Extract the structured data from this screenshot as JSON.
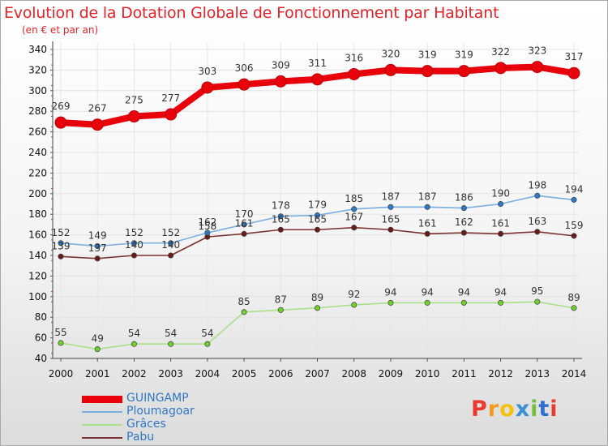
{
  "header": {
    "title": "Evolution de la Dotation Globale de Fonctionnement par Habitant",
    "subtitle": "(en € et par an)"
  },
  "logo": {
    "text": "Proxiti",
    "letters": [
      {
        "ch": "P",
        "color": "#e63b2e"
      },
      {
        "ch": "r",
        "color": "#f39a1f"
      },
      {
        "ch": "o",
        "color": "#f4c20d"
      },
      {
        "ch": "x",
        "color": "#3a8fd6"
      },
      {
        "ch": "i",
        "color": "#6fc13e"
      },
      {
        "ch": "t",
        "color": "#2d6fd1"
      },
      {
        "ch": "i",
        "color": "#e63b2e"
      }
    ]
  },
  "chart_data": {
    "type": "line",
    "title": "Evolution de la Dotation Globale de Fonctionnement par Habitant",
    "subtitle": "(en € et par an)",
    "xlabel": "",
    "ylabel": "",
    "ylim": [
      40,
      340
    ],
    "yticks": [
      40,
      60,
      80,
      100,
      120,
      140,
      160,
      180,
      200,
      220,
      240,
      260,
      280,
      300,
      320,
      340
    ],
    "x": [
      "2000",
      "2001",
      "2002",
      "2003",
      "2004",
      "2005",
      "2006",
      "2007",
      "2008",
      "2009",
      "2010",
      "2011",
      "2012",
      "2013",
      "2014"
    ],
    "grid": true,
    "series": [
      {
        "name": "GUINGAMP",
        "color": "#e8000b",
        "line_color": "#e8000b",
        "values": [
          269,
          267,
          275,
          277,
          303,
          306,
          309,
          311,
          316,
          320,
          319,
          319,
          322,
          323,
          317
        ]
      },
      {
        "name": "Ploumagoar",
        "color": "#2f78c4",
        "line_color": "#78aee0",
        "values": [
          152,
          149,
          152,
          152,
          162,
          170,
          178,
          179,
          185,
          187,
          187,
          186,
          190,
          198,
          194
        ]
      },
      {
        "name": "Grâces",
        "color": "#6fcf2f",
        "line_color": "#a9e089",
        "values": [
          55,
          49,
          54,
          54,
          54,
          85,
          87,
          89,
          92,
          94,
          94,
          94,
          94,
          95,
          89
        ]
      },
      {
        "name": "Pabu",
        "color": "#6b1a1a",
        "line_color": "#7a3333",
        "values": [
          139,
          137,
          140,
          140,
          158,
          161,
          165,
          165,
          167,
          165,
          161,
          162,
          161,
          163,
          159
        ]
      }
    ]
  }
}
